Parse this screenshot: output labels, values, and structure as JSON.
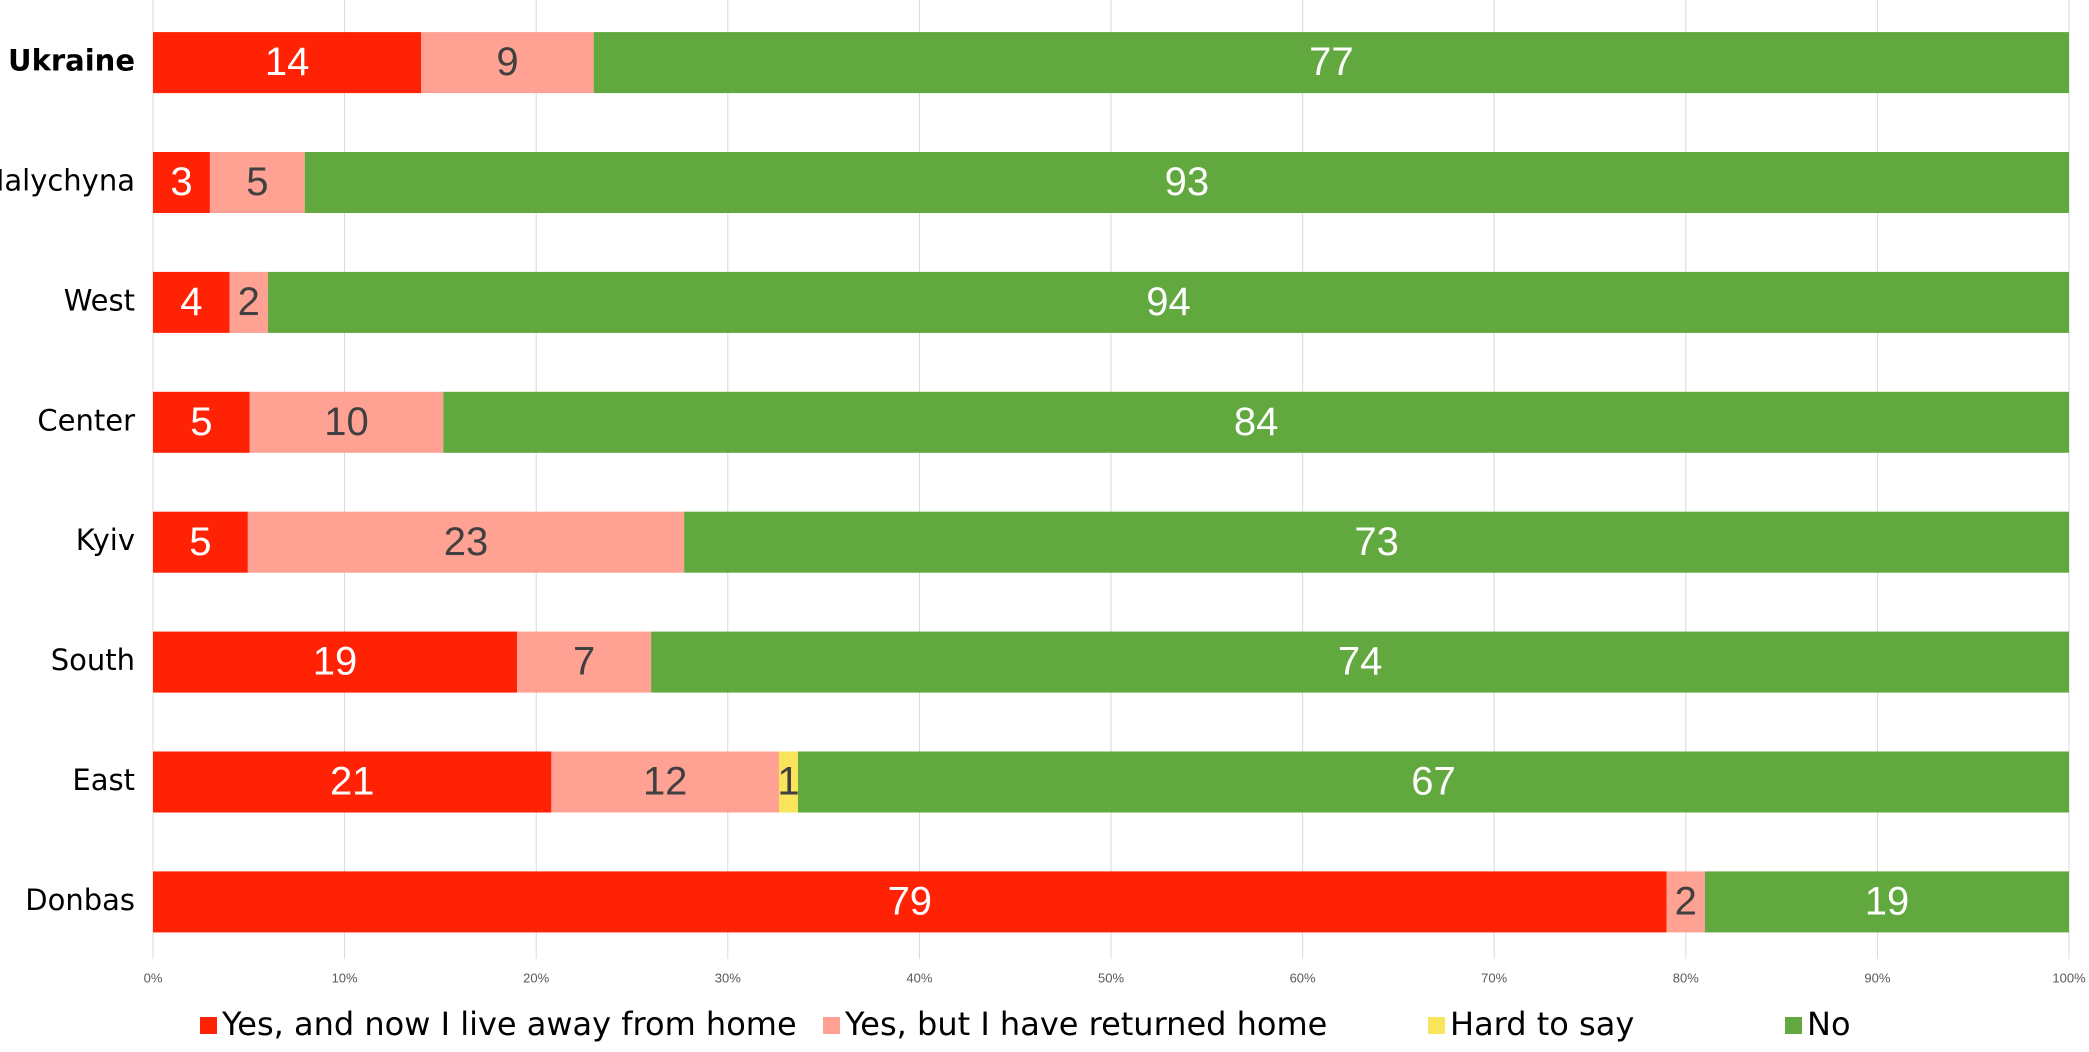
{
  "chart_data": {
    "type": "stacked_percent_barh",
    "categories": [
      "Ukraine",
      "Halychyna",
      "West",
      "Center",
      "Kyiv",
      "South",
      "East",
      "Donbas"
    ],
    "series": [
      {
        "name": "Yes, and now I live away from home",
        "color": "#ff2205",
        "label_color": "#ffffff",
        "values": [
          14,
          3,
          4,
          5,
          5,
          19,
          21,
          79
        ]
      },
      {
        "name": "Yes, but I have returned home",
        "color": "#ffa294",
        "label_color": "#404040",
        "values": [
          9,
          5,
          2,
          10,
          23,
          7,
          12,
          2
        ]
      },
      {
        "name": "Hard to say",
        "color": "#f9e45b",
        "label_color": "#404040",
        "values": [
          null,
          null,
          null,
          null,
          null,
          null,
          1,
          null
        ]
      },
      {
        "name": "No",
        "color": "#61a83f",
        "label_color": "#ffffff",
        "values": [
          77,
          93,
          94,
          84,
          73,
          74,
          67,
          19
        ]
      }
    ],
    "xlim": [
      0,
      100
    ],
    "xticks": [
      {
        "value": 0,
        "label": "0%"
      },
      {
        "value": 10,
        "label": "10%"
      },
      {
        "value": 20,
        "label": "20%"
      },
      {
        "value": 30,
        "label": "30%"
      },
      {
        "value": 40,
        "label": "40%"
      },
      {
        "value": 50,
        "label": "50%"
      },
      {
        "value": 60,
        "label": "60%"
      },
      {
        "value": 70,
        "label": "70%"
      },
      {
        "value": 80,
        "label": "80%"
      },
      {
        "value": 90,
        "label": "90%"
      },
      {
        "value": 100,
        "label": "100%"
      }
    ],
    "grid": true,
    "legend": "bottom"
  }
}
